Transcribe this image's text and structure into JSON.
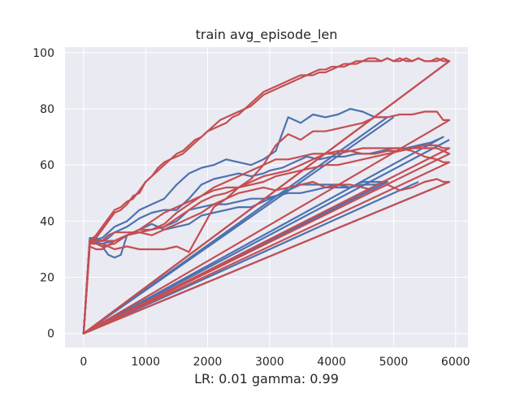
{
  "chart_data": {
    "type": "line",
    "title": "train avg_episode_len",
    "xlabel": "LR: 0.01 gamma: 0.99",
    "ylabel": "",
    "xlim": [
      -300,
      6200
    ],
    "ylim": [
      -5,
      102
    ],
    "xticks": [
      0,
      1000,
      2000,
      3000,
      4000,
      5000,
      6000
    ],
    "yticks": [
      0,
      20,
      40,
      60,
      80,
      100
    ],
    "grid": true,
    "legend": "none",
    "background": "#eaeaf2",
    "grid_color": "#ffffff",
    "colors": {
      "blue": "#4c72b0",
      "red": "#c44e52"
    },
    "series": [
      {
        "color": "blue",
        "x": [
          0,
          100,
          200,
          300,
          400,
          500,
          600,
          700,
          900,
          1100,
          1300,
          1500,
          1700,
          1900,
          2100,
          2300,
          2500,
          2700,
          2900,
          3100,
          3300,
          3500,
          3700,
          3900,
          4100,
          4300,
          4500,
          4700,
          4900,
          0,
          5900
        ],
        "y": [
          0,
          33,
          33,
          31,
          28,
          27,
          28,
          35,
          37,
          39,
          37,
          38,
          39,
          42,
          43,
          44,
          45,
          45,
          47,
          49,
          51,
          53,
          53,
          53,
          53,
          52,
          54,
          54,
          54,
          0,
          54
        ]
      },
      {
        "color": "blue",
        "x": [
          0,
          100,
          200,
          300,
          400,
          500,
          700,
          900,
          1100,
          1300,
          1500,
          1700,
          1900,
          2100,
          2300,
          2500,
          2700,
          2900,
          3000,
          3200,
          3400,
          3600,
          3800,
          4000,
          4200,
          4400,
          4600,
          4800,
          5000,
          5200,
          5400,
          5600,
          5800,
          0,
          5900
        ],
        "y": [
          0,
          34,
          34,
          33,
          34,
          36,
          38,
          41,
          43,
          44,
          44,
          48,
          53,
          55,
          56,
          57,
          56,
          57,
          58,
          59,
          61,
          63,
          62,
          63,
          63,
          64,
          64,
          65,
          66,
          66,
          67,
          68,
          70,
          0,
          69
        ]
      },
      {
        "color": "blue",
        "x": [
          0,
          100,
          300,
          500,
          700,
          900,
          1100,
          1300,
          1500,
          1700,
          1900,
          2100,
          2300,
          2500,
          2700,
          2900,
          3100,
          3300,
          3500,
          3700,
          3900,
          4100,
          4300,
          4500,
          4700,
          4900,
          0,
          5000
        ],
        "y": [
          0,
          33,
          34,
          38,
          40,
          44,
          46,
          48,
          53,
          57,
          59,
          60,
          62,
          61,
          60,
          62,
          65,
          77,
          75,
          78,
          77,
          78,
          80,
          79,
          77,
          77,
          0,
          77
        ]
      },
      {
        "color": "blue",
        "x": [
          0,
          100,
          300,
          500,
          700,
          900,
          1100,
          1300,
          1500,
          1700,
          1900,
          2100,
          2300,
          2500,
          2700,
          2900,
          3100,
          3300,
          3500,
          3700,
          3900,
          4100,
          4300,
          4500,
          4700,
          4900,
          0,
          5400
        ],
        "y": [
          0,
          33,
          32,
          33,
          35,
          36,
          37,
          38,
          40,
          44,
          45,
          46,
          46,
          47,
          48,
          48,
          49,
          50,
          50,
          51,
          52,
          52,
          52,
          53,
          53,
          54,
          0,
          54
        ]
      },
      {
        "color": "red",
        "x": [
          0,
          100,
          200,
          300,
          400,
          500,
          600,
          700,
          800,
          900,
          1000,
          1100,
          1200,
          1300,
          1400,
          1500,
          1600,
          1700,
          1800,
          1900,
          2000,
          2100,
          2200,
          2300,
          2400,
          2500,
          2600,
          2700,
          2800,
          2900,
          3000,
          3100,
          3200,
          3300,
          3400,
          3500,
          3600,
          3700,
          3800,
          3900,
          4000,
          4100,
          4200,
          4300,
          4400,
          4500,
          4600,
          4700,
          4800,
          4900,
          5000,
          5100,
          5200,
          5300,
          5400,
          5500,
          5600,
          5700,
          5800,
          5900,
          0,
          5900
        ],
        "y": [
          0,
          33,
          34,
          37,
          40,
          43,
          44,
          46,
          49,
          50,
          54,
          56,
          59,
          61,
          62,
          64,
          65,
          67,
          69,
          70,
          72,
          74,
          76,
          77,
          78,
          79,
          80,
          82,
          84,
          86,
          87,
          88,
          89,
          90,
          91,
          92,
          92,
          93,
          94,
          94,
          95,
          95,
          96,
          96,
          97,
          97,
          98,
          98,
          97,
          98,
          97,
          97,
          98,
          97,
          98,
          97,
          97,
          98,
          97,
          97,
          0,
          97
        ]
      },
      {
        "color": "red",
        "x": [
          0,
          100,
          200,
          300,
          400,
          500,
          600,
          700,
          800,
          900,
          1000,
          1100,
          1200,
          1300,
          1400,
          1500,
          1600,
          1700,
          1800,
          1900,
          2000,
          2100,
          2200,
          2300,
          2400,
          2500,
          2600,
          2700,
          2800,
          2900,
          3000,
          3100,
          3200,
          3300,
          3400,
          3500,
          3600,
          3700,
          3800,
          3900,
          4000,
          4100,
          4200,
          4300,
          4400,
          4500,
          4600,
          4700,
          4800,
          4900,
          5000,
          5100,
          5200,
          5300,
          5400,
          5500,
          5600,
          5700,
          5800,
          5900,
          0,
          5900
        ],
        "y": [
          0,
          33,
          35,
          38,
          41,
          44,
          45,
          47,
          48,
          51,
          54,
          56,
          58,
          60,
          62,
          63,
          64,
          66,
          68,
          70,
          72,
          73,
          74,
          75,
          77,
          78,
          80,
          81,
          83,
          85,
          86,
          87,
          88,
          89,
          90,
          91,
          92,
          92,
          93,
          93,
          94,
          95,
          95,
          96,
          96,
          97,
          97,
          97,
          97,
          98,
          97,
          98,
          97,
          97,
          98,
          97,
          97,
          97,
          98,
          97,
          0,
          97
        ]
      },
      {
        "color": "red",
        "x": [
          0,
          100,
          200,
          300,
          400,
          500,
          700,
          900,
          1100,
          1300,
          1500,
          1700,
          1900,
          2100,
          2300,
          2500,
          2700,
          2900,
          3100,
          3300,
          3500,
          3700,
          3900,
          4100,
          4300,
          4500,
          4700,
          4900,
          5100,
          5300,
          5500,
          5700,
          5800,
          5900,
          0,
          5900
        ],
        "y": [
          0,
          32,
          33,
          33,
          35,
          36,
          36,
          36,
          35,
          37,
          39,
          41,
          43,
          46,
          48,
          52,
          55,
          60,
          67,
          71,
          69,
          72,
          72,
          73,
          74,
          75,
          77,
          77,
          78,
          78,
          79,
          79,
          76,
          76,
          0,
          76
        ]
      },
      {
        "color": "red",
        "x": [
          0,
          100,
          200,
          300,
          500,
          700,
          900,
          1100,
          1300,
          1500,
          1700,
          1900,
          2100,
          2300,
          2500,
          2700,
          2900,
          3100,
          3300,
          3500,
          3700,
          3900,
          4100,
          4300,
          4500,
          4700,
          4900,
          5100,
          5300,
          5500,
          5700,
          5800,
          5900,
          0,
          5900
        ],
        "y": [
          0,
          31,
          30,
          30,
          33,
          35,
          37,
          37,
          38,
          41,
          44,
          47,
          49,
          50,
          52,
          54,
          56,
          57,
          58,
          60,
          62,
          64,
          65,
          65,
          64,
          64,
          65,
          65,
          66,
          66,
          66,
          65,
          64,
          0,
          64
        ]
      },
      {
        "color": "red",
        "x": [
          0,
          100,
          300,
          500,
          700,
          900,
          1100,
          1300,
          1500,
          1700,
          1900,
          2100,
          2300,
          2500,
          2700,
          2900,
          3100,
          3300,
          3500,
          3700,
          3900,
          4100,
          4300,
          4500,
          4700,
          4900,
          5100,
          5300,
          5500,
          5700,
          5800,
          5900,
          0,
          5900
        ],
        "y": [
          0,
          33,
          31,
          32,
          35,
          36,
          37,
          39,
          43,
          46,
          49,
          52,
          54,
          56,
          58,
          60,
          62,
          62,
          63,
          64,
          64,
          64,
          65,
          66,
          66,
          66,
          66,
          65,
          63,
          62,
          61,
          61,
          0,
          61
        ]
      },
      {
        "color": "red",
        "x": [
          0,
          100,
          300,
          500,
          700,
          900,
          1100,
          1300,
          1500,
          1700,
          1900,
          2100,
          2300,
          2500,
          2700,
          2900,
          3100,
          3300,
          3500,
          3700,
          3900,
          4100,
          4300,
          4500,
          4700,
          4900,
          5100,
          5300,
          5500,
          5700,
          5800,
          5900,
          0,
          5900
        ],
        "y": [
          0,
          32,
          32,
          30,
          31,
          30,
          30,
          30,
          31,
          29,
          37,
          45,
          48,
          50,
          51,
          52,
          51,
          52,
          53,
          54,
          52,
          53,
          53,
          52,
          51,
          53,
          51,
          52,
          54,
          55,
          54,
          54,
          0,
          54
        ]
      },
      {
        "color": "red",
        "x": [
          0,
          100,
          300,
          500,
          700,
          900,
          1100,
          1300,
          1500,
          1700,
          1900,
          2100,
          2300,
          2500,
          2700,
          2900,
          3100,
          3300,
          3500,
          3700,
          3900,
          4100,
          4300,
          4500,
          4700,
          4900,
          5100,
          5300,
          5500,
          5700,
          5800,
          5900,
          0,
          5900
        ],
        "y": [
          0,
          33,
          33,
          33,
          35,
          37,
          40,
          43,
          45,
          47,
          49,
          51,
          52,
          52,
          53,
          54,
          56,
          57,
          58,
          59,
          60,
          60,
          61,
          62,
          63,
          64,
          65,
          66,
          67,
          67,
          66,
          66,
          0,
          66
        ]
      }
    ]
  }
}
